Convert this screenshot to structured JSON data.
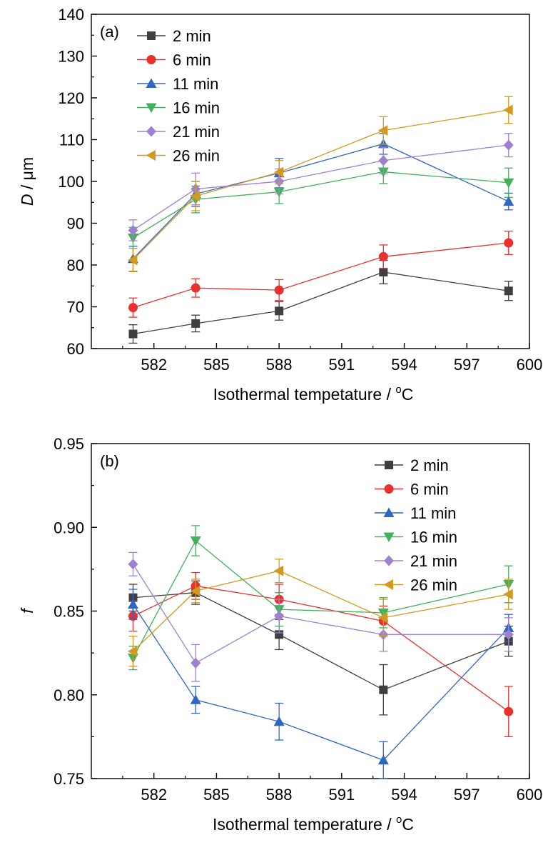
{
  "chart_data": [
    {
      "type": "line",
      "panel_label": "(a)",
      "xlabel": "Isothermal tempetature / ",
      "xlabel_unit_sup": "o",
      "xlabel_unit": "C",
      "ylabel_italic": "D",
      "ylabel_rest": " / μm",
      "xlim": [
        579,
        600
      ],
      "ylim": [
        60,
        140
      ],
      "xticks": [
        "582",
        "585",
        "588",
        "591",
        "594",
        "597",
        "600"
      ],
      "yticks": [
        "60",
        "70",
        "80",
        "90",
        "100",
        "110",
        "120",
        "130",
        "140"
      ],
      "legend_position": "top-left",
      "x": [
        581,
        584,
        588,
        593,
        599
      ],
      "series": [
        {
          "name": "2 min",
          "marker": "square",
          "color": "#3f3f3f",
          "values": [
            63.5,
            66.0,
            69.0,
            78.3,
            73.8
          ],
          "errors": [
            2.2,
            2.0,
            2.2,
            2.8,
            2.3
          ]
        },
        {
          "name": "6 min",
          "marker": "circle",
          "color": "#e8312f",
          "values": [
            69.8,
            74.5,
            74.0,
            82.0,
            85.3
          ],
          "errors": [
            2.3,
            2.2,
            2.5,
            2.8,
            2.8
          ]
        },
        {
          "name": "11 min",
          "marker": "triangle-up",
          "color": "#2f66c4",
          "values": [
            81.5,
            97.0,
            102.0,
            109.0,
            95.2
          ],
          "errors": [
            3.0,
            3.0,
            3.5,
            2.5,
            2.0
          ]
        },
        {
          "name": "16 min",
          "marker": "triangle-down",
          "color": "#43b05c",
          "values": [
            86.5,
            95.7,
            97.5,
            102.3,
            99.7
          ],
          "errors": [
            2.5,
            3.2,
            2.8,
            2.8,
            3.5
          ]
        },
        {
          "name": "21 min",
          "marker": "diamond",
          "color": "#9f82cf",
          "values": [
            88.3,
            98.2,
            100.0,
            105.0,
            108.7
          ],
          "errors": [
            2.5,
            3.8,
            3.0,
            3.2,
            2.8
          ]
        },
        {
          "name": "26 min",
          "marker": "triangle-left",
          "color": "#d39a21",
          "values": [
            81.2,
            96.5,
            102.2,
            112.2,
            117.1
          ],
          "errors": [
            2.8,
            3.5,
            2.8,
            3.3,
            3.2
          ]
        }
      ]
    },
    {
      "type": "line",
      "panel_label": "(b)",
      "xlabel": "Isothermal temperature / ",
      "xlabel_unit_sup": "o",
      "xlabel_unit": "C",
      "ylabel_italic": "f",
      "ylabel_rest": "",
      "xlim": [
        579,
        600
      ],
      "ylim": [
        0.75,
        0.95
      ],
      "xticks": [
        "582",
        "585",
        "588",
        "591",
        "594",
        "597",
        "600"
      ],
      "yticks": [
        "0.75",
        "0.80",
        "0.85",
        "0.90",
        "0.95"
      ],
      "legend_position": "top-right",
      "x": [
        581,
        584,
        588,
        593,
        599
      ],
      "series": [
        {
          "name": "2 min",
          "marker": "square",
          "color": "#3f3f3f",
          "values": [
            0.858,
            0.861,
            0.836,
            0.803,
            0.832
          ],
          "errors": [
            0.008,
            0.007,
            0.009,
            0.015,
            0.009
          ]
        },
        {
          "name": "6 min",
          "marker": "circle",
          "color": "#e8312f",
          "values": [
            0.847,
            0.865,
            0.857,
            0.844,
            0.79
          ],
          "errors": [
            0.009,
            0.008,
            0.009,
            0.009,
            0.015
          ]
        },
        {
          "name": "11 min",
          "marker": "triangle-up",
          "color": "#2f66c4",
          "values": [
            0.854,
            0.797,
            0.784,
            0.761,
            0.84
          ],
          "errors": [
            0.009,
            0.008,
            0.011,
            0.011,
            0.008
          ]
        },
        {
          "name": "16 min",
          "marker": "triangle-down",
          "color": "#43b05c",
          "values": [
            0.822,
            0.892,
            0.851,
            0.849,
            0.866
          ],
          "errors": [
            0.007,
            0.009,
            0.01,
            0.009,
            0.011
          ]
        },
        {
          "name": "21 min",
          "marker": "diamond",
          "color": "#9f82cf",
          "values": [
            0.878,
            0.819,
            0.847,
            0.836,
            0.836
          ],
          "errors": [
            0.007,
            0.011,
            0.01,
            0.01,
            0.01
          ]
        },
        {
          "name": "26 min",
          "marker": "triangle-left",
          "color": "#d39a21",
          "values": [
            0.826,
            0.862,
            0.874,
            0.846,
            0.86
          ],
          "errors": [
            0.009,
            0.007,
            0.007,
            0.011,
            0.009
          ]
        }
      ]
    }
  ]
}
